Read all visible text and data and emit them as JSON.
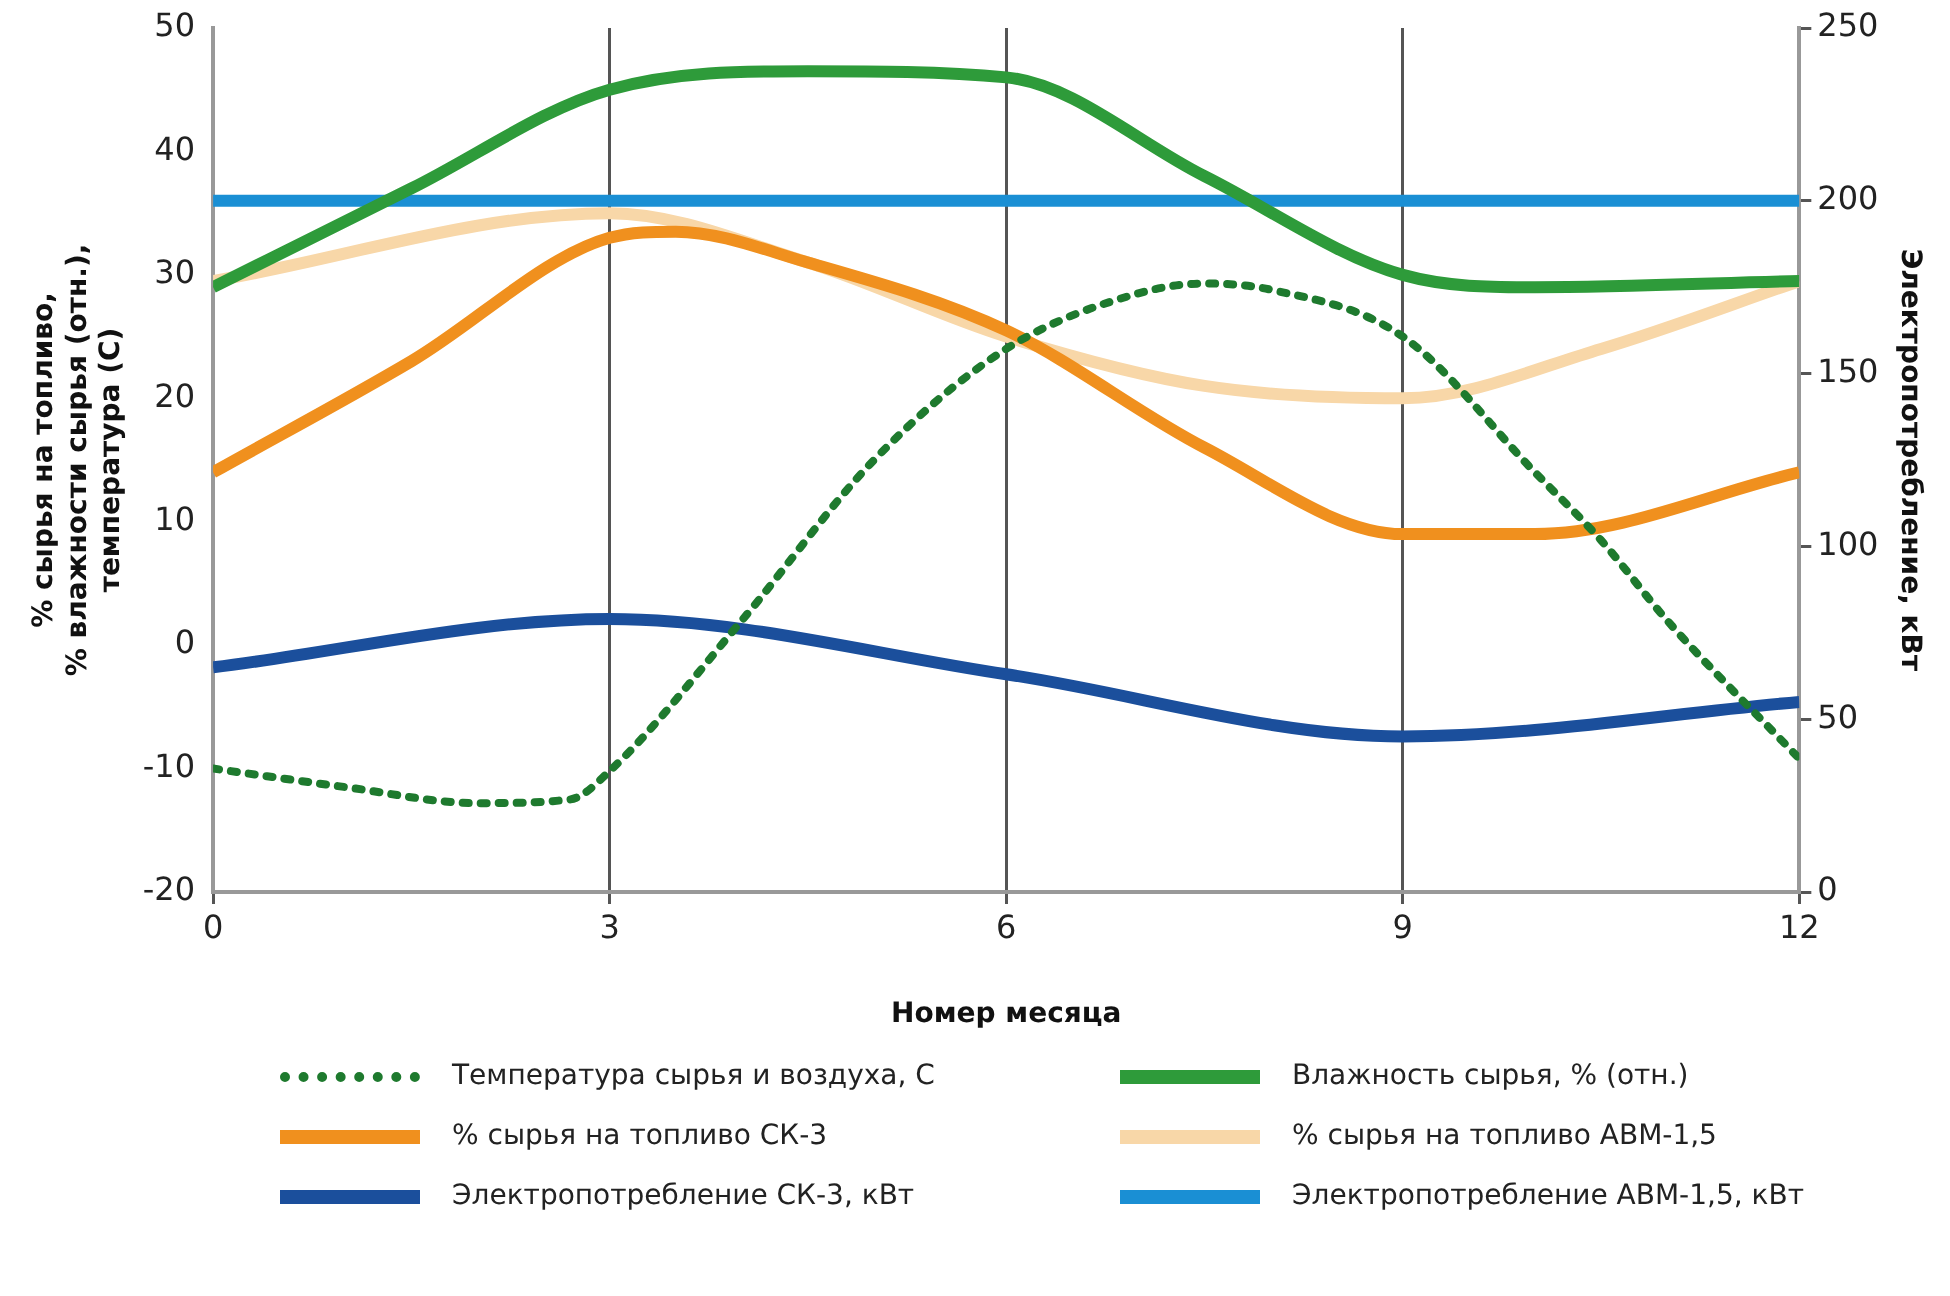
{
  "chart_data": {
    "type": "line",
    "xlabel": "Номер месяца",
    "ylabel": "% сырья на топливо,\n% влажности сырья (отн.),\nтемпература (С)",
    "y2label": "Электропотребление, кВт",
    "xlim": [
      0,
      12
    ],
    "xticks": [
      0,
      3,
      6,
      9,
      12
    ],
    "ylim": [
      -20,
      50
    ],
    "yticks": [
      -20,
      -10,
      0,
      10,
      20,
      30,
      40,
      50
    ],
    "y2lim": [
      0,
      250
    ],
    "y2ticks": [
      0,
      50,
      100,
      150,
      200,
      250
    ],
    "grid": "x",
    "legend": "bottom",
    "marker": "none",
    "series": [
      {
        "name": "Температура сырья и воздуха, С",
        "color": "#1e7a2e",
        "line_style": "dotted",
        "x": [
          0,
          1,
          2,
          2.7,
          3,
          4,
          5,
          6,
          7,
          7.5,
          8,
          9,
          10,
          10.5,
          11,
          12
        ],
        "values": [
          -10,
          -11.5,
          -12.8,
          -12.5,
          -10.2,
          2,
          15,
          24,
          28.5,
          29.3,
          28.8,
          25,
          14,
          8.5,
          2,
          -9.2
        ]
      },
      {
        "name": "Влажность сырья, % (отн.)",
        "color": "#2e9b3a",
        "x": [
          0,
          1.5,
          3,
          4.5,
          6,
          7.5,
          9,
          10,
          12
        ],
        "values": [
          29,
          37,
          45,
          46.5,
          46,
          38,
          30,
          29,
          29.5
        ]
      },
      {
        "name": "% сырья на топливо СК-3",
        "color": "#f0901e",
        "x": [
          0,
          1.5,
          3,
          3.5,
          4.5,
          6,
          7.5,
          9,
          10,
          12
        ],
        "values": [
          14,
          23,
          33,
          33.5,
          31,
          25.5,
          16,
          9,
          9,
          14
        ]
      },
      {
        "name": "% сырья на топливо АВМ-1,5",
        "color": "#f8d7a8",
        "x": [
          0,
          3,
          4.5,
          6,
          7.5,
          9,
          10.5,
          12
        ],
        "values": [
          29.5,
          35,
          31,
          25,
          21,
          20,
          24,
          29.5
        ]
      },
      {
        "name": "Электропотребление СК-3, кВт",
        "color": "#1b4f9c",
        "axis": "y2",
        "x": [
          0,
          3,
          6,
          9,
          12
        ],
        "values": [
          65,
          79,
          63,
          45,
          55
        ]
      },
      {
        "name": "Электропотребление АВМ-1,5, кВт",
        "color": "#1a8fd4",
        "axis": "y2",
        "x": [
          0,
          12
        ],
        "values": [
          200,
          200
        ]
      }
    ]
  }
}
